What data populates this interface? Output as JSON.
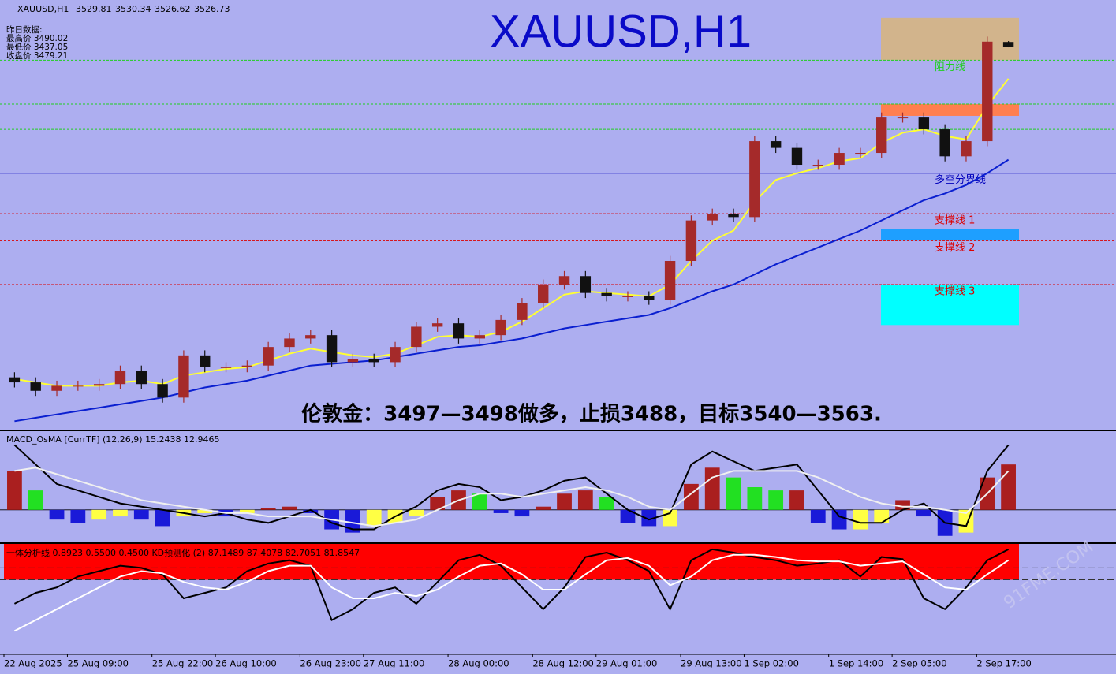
{
  "chart_data": {
    "type": "candlestick",
    "title": "XAUUSD,H1",
    "info": [
      "昨日数据:",
      "最高价 3490.02",
      "最低价 3437.05",
      "收盘价 3479.21"
    ],
    "annotation": "伦敦金：3497—3498做多，止损3488，目标3540—3563.",
    "watermark": "91FME.COM",
    "categories": [
      "22 Aug 2025",
      null,
      null,
      "25 Aug 09:00",
      null,
      null,
      null,
      "25 Aug 22:00",
      null,
      null,
      "26 Aug 10:00",
      null,
      null,
      null,
      "26 Aug 23:00",
      null,
      null,
      "27 Aug 11:00",
      null,
      null,
      null,
      "28 Aug 00:00",
      null,
      null,
      null,
      "28 Aug 12:00",
      null,
      null,
      "29 Aug 01:00",
      null,
      null,
      null,
      "29 Aug 13:00",
      null,
      null,
      "1 Sep 02:00",
      null,
      null,
      null,
      "1 Sep 14:00",
      null,
      null,
      "2 Sep 05:00",
      null,
      null,
      null,
      "2 Sep 17:00",
      null
    ],
    "open": [
      3331,
      3328,
      3323,
      3326,
      3326,
      3327,
      3335,
      3327,
      3319,
      3344,
      3337,
      3337,
      3338,
      3349,
      3354,
      3356,
      3340,
      3342,
      3340,
      3349,
      3361,
      3363,
      3354,
      3356,
      3365,
      3375,
      3386,
      3391,
      3381,
      3379,
      3379,
      3377,
      3400,
      3424,
      3428,
      3426,
      3471,
      3467,
      3457,
      3457,
      3464,
      3464,
      3485,
      3485,
      3478,
      3462,
      3471,
      3529.81
    ],
    "high": [
      3334,
      3331,
      3329,
      3329,
      3330,
      3338,
      3338,
      3330,
      3347,
      3347,
      3340,
      3341,
      3352,
      3357,
      3359,
      3359,
      3345,
      3345,
      3352,
      3364,
      3366,
      3366,
      3359,
      3368,
      3378,
      3389,
      3394,
      3394,
      3384,
      3382,
      3382,
      3403,
      3427,
      3431,
      3431,
      3474,
      3474,
      3470,
      3460,
      3467,
      3467,
      3488,
      3488,
      3488,
      3481,
      3474,
      3533,
      3530.34
    ],
    "low": [
      3325,
      3320,
      3320,
      3323,
      3323,
      3324,
      3324,
      3316,
      3316,
      3334,
      3334,
      3334,
      3335,
      3346,
      3351,
      3337,
      3337,
      3337,
      3337,
      3346,
      3358,
      3351,
      3351,
      3353,
      3362,
      3372,
      3383,
      3378,
      3376,
      3376,
      3374,
      3374,
      3397,
      3421,
      3423,
      3423,
      3464,
      3454,
      3454,
      3454,
      3461,
      3461,
      3482,
      3475,
      3459,
      3459,
      3468,
      3526.62
    ],
    "close": [
      3328,
      3323,
      3326,
      3326,
      3327,
      3335,
      3327,
      3319,
      3344,
      3337,
      3337,
      3338,
      3349,
      3354,
      3356,
      3340,
      3342,
      3340,
      3349,
      3361,
      3363,
      3354,
      3356,
      3365,
      3375,
      3386,
      3391,
      3381,
      3379,
      3379,
      3377,
      3400,
      3424,
      3428,
      3426,
      3471,
      3467,
      3457,
      3457,
      3464,
      3464,
      3485,
      3485,
      3478,
      3462,
      3471,
      3530,
      3526.73
    ],
    "up_color": "#a52a2a",
    "down_color": "#111111",
    "ylim": [
      3300,
      3550
    ],
    "ma": [
      {
        "color": "#ffff33",
        "values": [
          3330,
          3328,
          3326,
          3326,
          3326,
          3328,
          3329,
          3327,
          3332,
          3334,
          3336,
          3337,
          3341,
          3345,
          3348,
          3346,
          3344,
          3343,
          3345,
          3350,
          3355,
          3356,
          3355,
          3358,
          3364,
          3372,
          3380,
          3382,
          3381,
          3380,
          3379,
          3386,
          3400,
          3412,
          3418,
          3435,
          3448,
          3452,
          3455,
          3459,
          3461,
          3470,
          3476,
          3478,
          3474,
          3472,
          3492,
          3508
        ]
      },
      {
        "color": "#0a1fd0",
        "values": [
          3305,
          3307,
          3309,
          3311,
          3313,
          3315,
          3317,
          3319,
          3322,
          3325,
          3327,
          3329,
          3332,
          3335,
          3338,
          3339,
          3340,
          3341,
          3343,
          3345,
          3347,
          3349,
          3350,
          3352,
          3354,
          3357,
          3360,
          3362,
          3364,
          3366,
          3368,
          3372,
          3377,
          3382,
          3386,
          3392,
          3398,
          3403,
          3408,
          3413,
          3418,
          3424,
          3430,
          3436,
          3440,
          3445,
          3452,
          3460
        ]
      }
    ],
    "levels": [
      {
        "label": "阻力线",
        "value": 3519,
        "color": "#1fcf1f",
        "dashed": true
      },
      {
        "label": null,
        "value": 3493,
        "color": "#1fcf1f",
        "dashed": true
      },
      {
        "label": null,
        "value": 3478,
        "color": "#1fcf1f",
        "dashed": true
      },
      {
        "label": "多空分界线",
        "value": 3452,
        "color": "#0000bb",
        "dashed": false
      },
      {
        "label": "支撑线 1",
        "value": 3428,
        "color": "#dd0000",
        "dashed": true
      },
      {
        "label": "支撑线 2",
        "value": 3412,
        "color": "#dd0000",
        "dashed": true
      },
      {
        "label": "支撑线 3",
        "value": 3386,
        "color": "#dd0000",
        "dashed": true
      }
    ],
    "zones": [
      {
        "from": 3519,
        "to": 3544,
        "color": "#d2b48c"
      },
      {
        "from": 3486,
        "to": 3493,
        "color": "#ff7f50"
      },
      {
        "from": 3412,
        "to": 3419,
        "color": "#1e9fff"
      },
      {
        "from": 3362,
        "to": 3386,
        "color": "#00ffff"
      }
    ],
    "macd": {
      "label": "MACD_OsMA [CurrTF] (12,26,9) 15.2438 12.9465",
      "ylim": [
        -10,
        24
      ],
      "colors": [
        "#aa1f1f",
        "#22e022",
        "#ffff44",
        "#1a1ad8"
      ],
      "histogram": [
        12,
        6,
        -3,
        -4,
        -3,
        -2,
        -3,
        -5,
        -2,
        -1,
        -2,
        -1,
        0.5,
        1,
        -1,
        -6,
        -7,
        -5,
        -4,
        -2,
        4,
        6,
        5,
        -1,
        -2,
        1,
        5,
        6,
        4,
        -4,
        -5,
        -5,
        8,
        13,
        10,
        7,
        6,
        6,
        -4,
        -6,
        -6,
        -4,
        3,
        -2,
        -8,
        -7,
        10,
        14
      ],
      "lines": [
        {
          "color": "#000000",
          "values": [
            20,
            14,
            8,
            6,
            4,
            2,
            1,
            0,
            -1,
            -2,
            -1,
            -3,
            -4,
            -2,
            0,
            -4,
            -6,
            -6,
            -2,
            1,
            6,
            8,
            7,
            3,
            4,
            6,
            9,
            10,
            5,
            0,
            -3,
            -1,
            14,
            18,
            15,
            12,
            13,
            14,
            6,
            -2,
            -4,
            -4,
            0,
            2,
            -4,
            -5,
            12,
            20
          ]
        },
        {
          "color": "#f0f0f0",
          "values": [
            12,
            13,
            11,
            9,
            7,
            5,
            3,
            2,
            1,
            0,
            -1,
            -1,
            -2,
            -2,
            -2,
            -3,
            -4,
            -5,
            -4,
            -3,
            0,
            3,
            5,
            5,
            4,
            5,
            6,
            7,
            6,
            4,
            1,
            0,
            5,
            10,
            12,
            12,
            12,
            12,
            10,
            7,
            4,
            2,
            1,
            1,
            0,
            -1,
            5,
            12
          ]
        }
      ]
    },
    "kd": {
      "label": "一体分析线 0.8923 0.5500 0.4500  KD预测化 (2) 87.1489 87.4078 82.7051 81.8547",
      "ylim": [
        0,
        100
      ],
      "band": [
        67,
        100
      ],
      "band_color": "#ff0000",
      "levels": [
        78,
        67
      ],
      "lines": [
        {
          "color": "#000000",
          "values": [
            45,
            55,
            60,
            70,
            75,
            80,
            78,
            72,
            50,
            55,
            60,
            75,
            82,
            85,
            80,
            30,
            40,
            55,
            60,
            45,
            65,
            85,
            90,
            80,
            60,
            40,
            60,
            88,
            92,
            85,
            75,
            40,
            85,
            95,
            92,
            88,
            85,
            80,
            82,
            85,
            70,
            88,
            86,
            50,
            40,
            60,
            85,
            95
          ]
        },
        {
          "color": "#ffffff",
          "values": [
            20,
            30,
            40,
            50,
            60,
            70,
            75,
            73,
            65,
            60,
            58,
            65,
            75,
            80,
            80,
            60,
            50,
            50,
            55,
            52,
            58,
            70,
            80,
            82,
            72,
            58,
            58,
            72,
            85,
            87,
            80,
            62,
            70,
            85,
            90,
            90,
            88,
            85,
            84,
            84,
            80,
            82,
            84,
            72,
            60,
            58,
            72,
            85
          ]
        }
      ]
    }
  }
}
